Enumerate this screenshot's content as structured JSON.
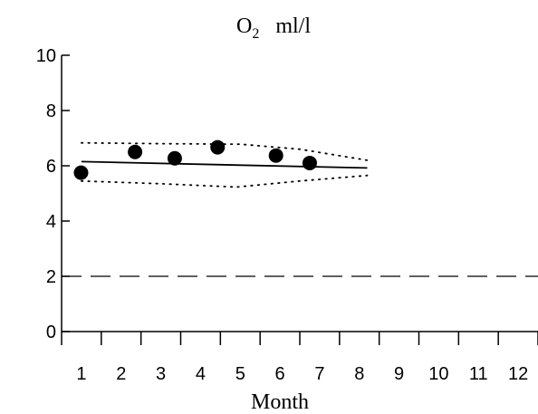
{
  "chart_data": {
    "type": "scatter",
    "title_main": "O",
    "title_sub": "2",
    "title_unit": "ml/l",
    "xlabel": "Month",
    "ylabel": "",
    "xlim": [
      0.5,
      12.5
    ],
    "ylim": [
      0,
      10
    ],
    "x_ticks": [
      1,
      2,
      3,
      4,
      5,
      6,
      7,
      8,
      9,
      10,
      11,
      12
    ],
    "x_tick_labels": [
      "1",
      "2",
      "3",
      "4",
      "5",
      "6",
      "7",
      "8",
      "9",
      "10",
      "11",
      "12"
    ],
    "y_ticks": [
      0,
      2,
      4,
      6,
      8,
      10
    ],
    "y_tick_labels": [
      "0",
      "2",
      "4",
      "6",
      "8",
      "10"
    ],
    "grid": false,
    "legend": "none",
    "series": [
      {
        "kind": "points",
        "x": [
          0.99,
          2.35,
          3.35,
          4.43,
          5.9,
          6.75
        ],
        "y": [
          5.75,
          6.5,
          6.27,
          6.67,
          6.37,
          6.1
        ]
      },
      {
        "kind": "trend-line",
        "x": [
          1.0,
          8.2
        ],
        "y": [
          6.15,
          5.92
        ]
      },
      {
        "kind": "upper-confidence",
        "x": [
          1.0,
          3.0,
          5.0,
          6.5,
          8.2
        ],
        "y": [
          6.83,
          6.8,
          6.78,
          6.6,
          6.2
        ]
      },
      {
        "kind": "lower-confidence",
        "x": [
          1.0,
          3.0,
          4.9,
          6.5,
          8.2
        ],
        "y": [
          5.45,
          5.35,
          5.23,
          5.45,
          5.65
        ]
      },
      {
        "kind": "reference-line",
        "x": [
          0.5,
          12.5
        ],
        "y": [
          2.0,
          2.0
        ]
      }
    ],
    "colors": {
      "ink": "#000000",
      "background": "#ffffff"
    }
  }
}
